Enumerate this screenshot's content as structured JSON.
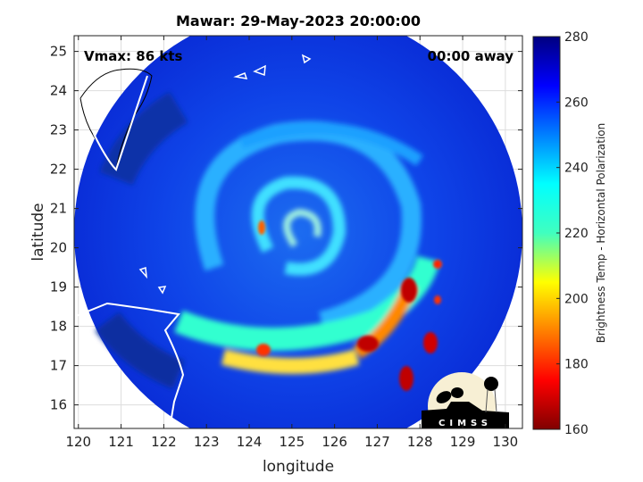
{
  "chart_data": {
    "type": "heatmap",
    "title": "Mawar: 29-May-2023 20:00:00",
    "xlabel": "longitude",
    "ylabel": "latitude",
    "xlim": [
      119.9,
      130.4
    ],
    "ylim": [
      15.4,
      25.4
    ],
    "xticks": [
      120,
      121,
      122,
      123,
      124,
      125,
      126,
      127,
      128,
      129,
      130
    ],
    "yticks": [
      16,
      17,
      18,
      19,
      20,
      21,
      22,
      23,
      24,
      25
    ],
    "grid": true,
    "annotations": {
      "vmax": "Vmax: 86 kts",
      "time_away": "00:00 away"
    },
    "storm_center": {
      "lon": 125.2,
      "lat": 20.3
    },
    "colorbar": {
      "label": "Brightness Temp - Horizontal Polarization",
      "range": [
        160,
        280
      ],
      "ticks": [
        160,
        180,
        200,
        220,
        240,
        260,
        280
      ],
      "colormap": "jet"
    }
  },
  "logo": {
    "text": "CIMSS"
  }
}
